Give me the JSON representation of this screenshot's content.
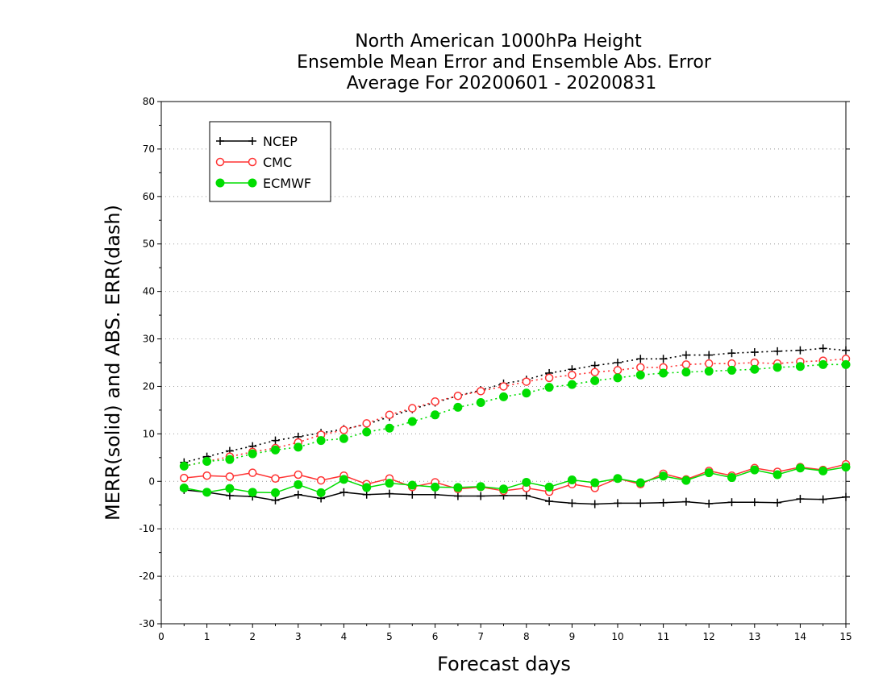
{
  "chart_data": {
    "type": "line",
    "title": [
      "North American 1000hPa Height",
      "Ensemble Mean Error and Ensemble Abs. Error",
      "Average For 20200601 - 20200831"
    ],
    "xlabel": "Forecast days",
    "ylabel": "MERR(solid) and ABS. ERR(dash)",
    "xlim": [
      0,
      15
    ],
    "ylim": [
      -30,
      80
    ],
    "xticks": [
      0,
      1,
      2,
      3,
      4,
      5,
      6,
      7,
      8,
      9,
      10,
      11,
      12,
      13,
      14,
      15
    ],
    "yticks": [
      -30,
      -20,
      -10,
      0,
      10,
      20,
      30,
      40,
      50,
      60,
      70,
      80
    ],
    "grid": "horizontal-dotted",
    "legend_position": "top-left",
    "x": [
      0.5,
      1.0,
      1.5,
      2.0,
      2.5,
      3.0,
      3.5,
      4.0,
      4.5,
      5.0,
      5.5,
      6.0,
      6.5,
      7.0,
      7.5,
      8.0,
      8.5,
      9.0,
      9.5,
      10.0,
      10.5,
      11.0,
      11.5,
      12.0,
      12.5,
      13.0,
      13.5,
      14.0,
      14.5,
      15.0
    ],
    "series": [
      {
        "name": "NCEP",
        "color": "#000000",
        "marker": "plus",
        "merr": [
          -1.8,
          -2.3,
          -3.0,
          -3.2,
          -4.0,
          -2.8,
          -3.6,
          -2.3,
          -2.8,
          -2.6,
          -2.8,
          -2.8,
          -3.1,
          -3.1,
          -3.0,
          -3.0,
          -4.2,
          -4.6,
          -4.8,
          -4.6,
          -4.6,
          -4.5,
          -4.3,
          -4.7,
          -4.4,
          -4.4,
          -4.5,
          -3.7,
          -3.8,
          -3.3
        ],
        "abs_err": [
          4.0,
          5.2,
          6.4,
          7.4,
          8.6,
          9.4,
          10.2,
          11.0,
          12.0,
          13.6,
          15.2,
          16.6,
          18.0,
          19.2,
          20.6,
          21.4,
          22.8,
          23.6,
          24.4,
          25.0,
          25.8,
          25.8,
          26.6,
          26.6,
          27.0,
          27.2,
          27.4,
          27.6,
          28.0,
          27.6
        ]
      },
      {
        "name": "CMC",
        "color": "#ff3333",
        "marker": "open-circle",
        "merr": [
          0.7,
          1.2,
          1.0,
          1.8,
          0.6,
          1.4,
          0.2,
          1.2,
          -0.6,
          0.6,
          -1.2,
          -0.2,
          -1.6,
          -1.2,
          -2.0,
          -1.4,
          -2.2,
          -0.6,
          -1.4,
          0.6,
          -0.6,
          1.6,
          0.4,
          2.2,
          1.2,
          2.8,
          2.0,
          3.0,
          2.4,
          3.6
        ],
        "abs_err": [
          3.2,
          4.2,
          5.2,
          6.2,
          7.0,
          8.2,
          9.8,
          10.8,
          12.2,
          14.0,
          15.4,
          16.8,
          18.0,
          19.0,
          20.0,
          21.0,
          21.8,
          22.4,
          23.0,
          23.4,
          24.0,
          24.0,
          24.6,
          24.8,
          24.8,
          25.0,
          24.8,
          25.2,
          25.4,
          25.8
        ]
      },
      {
        "name": "ECMWF",
        "color": "#00dd00",
        "marker": "filled-circle",
        "merr": [
          -1.4,
          -2.3,
          -1.5,
          -2.3,
          -2.4,
          -0.7,
          -2.4,
          0.4,
          -1.3,
          -0.4,
          -0.8,
          -1.2,
          -1.3,
          -1.1,
          -1.6,
          -0.2,
          -1.2,
          0.3,
          -0.3,
          0.6,
          -0.3,
          1.1,
          0.2,
          1.8,
          0.8,
          2.4,
          1.4,
          2.8,
          2.2,
          3.0
        ],
        "abs_err": [
          3.2,
          4.2,
          4.6,
          5.8,
          6.6,
          7.2,
          8.6,
          9.0,
          10.4,
          11.2,
          12.6,
          14.0,
          15.6,
          16.6,
          17.8,
          18.6,
          19.8,
          20.4,
          21.2,
          21.8,
          22.4,
          22.8,
          23.0,
          23.2,
          23.4,
          23.6,
          24.0,
          24.2,
          24.6,
          24.6
        ]
      }
    ]
  }
}
